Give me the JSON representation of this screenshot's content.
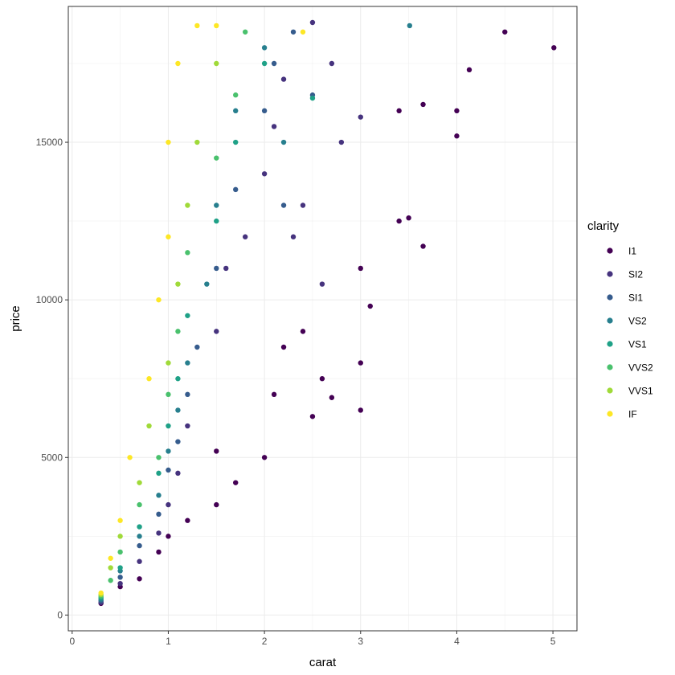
{
  "chart_data": {
    "type": "scatter",
    "xlabel": "carat",
    "ylabel": "price",
    "xlim": [
      -0.04,
      5.25
    ],
    "ylim": [
      -500,
      19310
    ],
    "x_ticks": [
      0,
      1,
      2,
      3,
      4,
      5
    ],
    "y_ticks": [
      0,
      5000,
      10000,
      15000
    ],
    "x_tick_labels": [
      "0",
      "1",
      "2",
      "3",
      "4",
      "5"
    ],
    "y_tick_labels": [
      "0",
      "5000",
      "10000",
      "15000"
    ],
    "grid": true,
    "legend": {
      "title": "clarity",
      "placement": "right"
    },
    "series": [
      {
        "name": "I1",
        "color": "#440154",
        "points": [
          [
            0.3,
            370
          ],
          [
            0.5,
            900
          ],
          [
            0.7,
            1150
          ],
          [
            0.9,
            2000
          ],
          [
            1.0,
            2500
          ],
          [
            1.2,
            3000
          ],
          [
            1.5,
            3500
          ],
          [
            1.7,
            4200
          ],
          [
            1.5,
            5200
          ],
          [
            2.0,
            5000
          ],
          [
            2.1,
            7000
          ],
          [
            2.2,
            8500
          ],
          [
            2.4,
            9000
          ],
          [
            2.6,
            7500
          ],
          [
            3.0,
            8000
          ],
          [
            3.0,
            6500
          ],
          [
            2.7,
            6900
          ],
          [
            3.0,
            11000
          ],
          [
            3.1,
            9800
          ],
          [
            3.4,
            12500
          ],
          [
            3.5,
            12600
          ],
          [
            3.65,
            11700
          ],
          [
            3.4,
            16000
          ],
          [
            3.65,
            16200
          ],
          [
            4.0,
            16000
          ],
          [
            4.0,
            15200
          ],
          [
            4.13,
            17300
          ],
          [
            4.5,
            18500
          ],
          [
            5.01,
            18000
          ],
          [
            2.5,
            6300
          ]
        ]
      },
      {
        "name": "SI2",
        "color": "#46337e",
        "points": [
          [
            0.3,
            400
          ],
          [
            0.5,
            1000
          ],
          [
            0.7,
            1700
          ],
          [
            0.9,
            2600
          ],
          [
            1.0,
            3500
          ],
          [
            1.1,
            4500
          ],
          [
            1.2,
            6000
          ],
          [
            1.5,
            9000
          ],
          [
            1.6,
            11000
          ],
          [
            1.8,
            12000
          ],
          [
            2.0,
            14000
          ],
          [
            2.1,
            15500
          ],
          [
            2.2,
            17000
          ],
          [
            2.5,
            18800
          ],
          [
            2.7,
            17500
          ],
          [
            3.0,
            15800
          ],
          [
            2.4,
            13000
          ],
          [
            2.8,
            15000
          ],
          [
            2.6,
            10500
          ],
          [
            2.3,
            12000
          ]
        ]
      },
      {
        "name": "SI1",
        "color": "#365c8d",
        "points": [
          [
            0.3,
            450
          ],
          [
            0.5,
            1200
          ],
          [
            0.7,
            2200
          ],
          [
            0.9,
            3200
          ],
          [
            1.0,
            4600
          ],
          [
            1.1,
            5500
          ],
          [
            1.2,
            7000
          ],
          [
            1.3,
            8500
          ],
          [
            1.5,
            11000
          ],
          [
            1.7,
            13500
          ],
          [
            2.0,
            16000
          ],
          [
            2.1,
            17500
          ],
          [
            2.3,
            18500
          ],
          [
            2.5,
            16500
          ],
          [
            2.2,
            13000
          ]
        ]
      },
      {
        "name": "VS2",
        "color": "#277f8e",
        "points": [
          [
            0.3,
            500
          ],
          [
            0.5,
            1400
          ],
          [
            0.7,
            2500
          ],
          [
            0.9,
            3800
          ],
          [
            1.0,
            5200
          ],
          [
            1.1,
            6500
          ],
          [
            1.2,
            8000
          ],
          [
            1.4,
            10500
          ],
          [
            1.5,
            13000
          ],
          [
            1.7,
            16000
          ],
          [
            2.0,
            18000
          ],
          [
            3.51,
            18700
          ],
          [
            2.2,
            15000
          ]
        ]
      },
      {
        "name": "VS1",
        "color": "#1fa187",
        "points": [
          [
            0.3,
            550
          ],
          [
            0.5,
            1500
          ],
          [
            0.7,
            2800
          ],
          [
            0.9,
            4500
          ],
          [
            1.0,
            6000
          ],
          [
            1.1,
            7500
          ],
          [
            1.2,
            9500
          ],
          [
            1.5,
            12500
          ],
          [
            1.7,
            15000
          ],
          [
            2.0,
            17500
          ],
          [
            2.5,
            16400
          ]
        ]
      },
      {
        "name": "VVS2",
        "color": "#4ac16d",
        "points": [
          [
            0.3,
            600
          ],
          [
            0.4,
            1100
          ],
          [
            0.5,
            2000
          ],
          [
            0.7,
            3500
          ],
          [
            0.9,
            5000
          ],
          [
            1.0,
            7000
          ],
          [
            1.1,
            9000
          ],
          [
            1.2,
            11500
          ],
          [
            1.5,
            14500
          ],
          [
            1.7,
            16500
          ],
          [
            1.8,
            18500
          ]
        ]
      },
      {
        "name": "VVS1",
        "color": "#a0da39",
        "points": [
          [
            0.3,
            650
          ],
          [
            0.4,
            1500
          ],
          [
            0.5,
            2500
          ],
          [
            0.7,
            4200
          ],
          [
            0.8,
            6000
          ],
          [
            1.0,
            8000
          ],
          [
            1.1,
            10500
          ],
          [
            1.2,
            13000
          ],
          [
            1.3,
            15000
          ],
          [
            1.5,
            17500
          ]
        ]
      },
      {
        "name": "IF",
        "color": "#fde725",
        "points": [
          [
            0.3,
            700
          ],
          [
            0.4,
            1800
          ],
          [
            0.5,
            3000
          ],
          [
            0.6,
            5000
          ],
          [
            0.8,
            7500
          ],
          [
            0.9,
            10000
          ],
          [
            1.0,
            12000
          ],
          [
            1.0,
            15000
          ],
          [
            1.1,
            17500
          ],
          [
            1.3,
            18700
          ],
          [
            1.5,
            18700
          ],
          [
            2.4,
            18500
          ]
        ]
      }
    ]
  }
}
